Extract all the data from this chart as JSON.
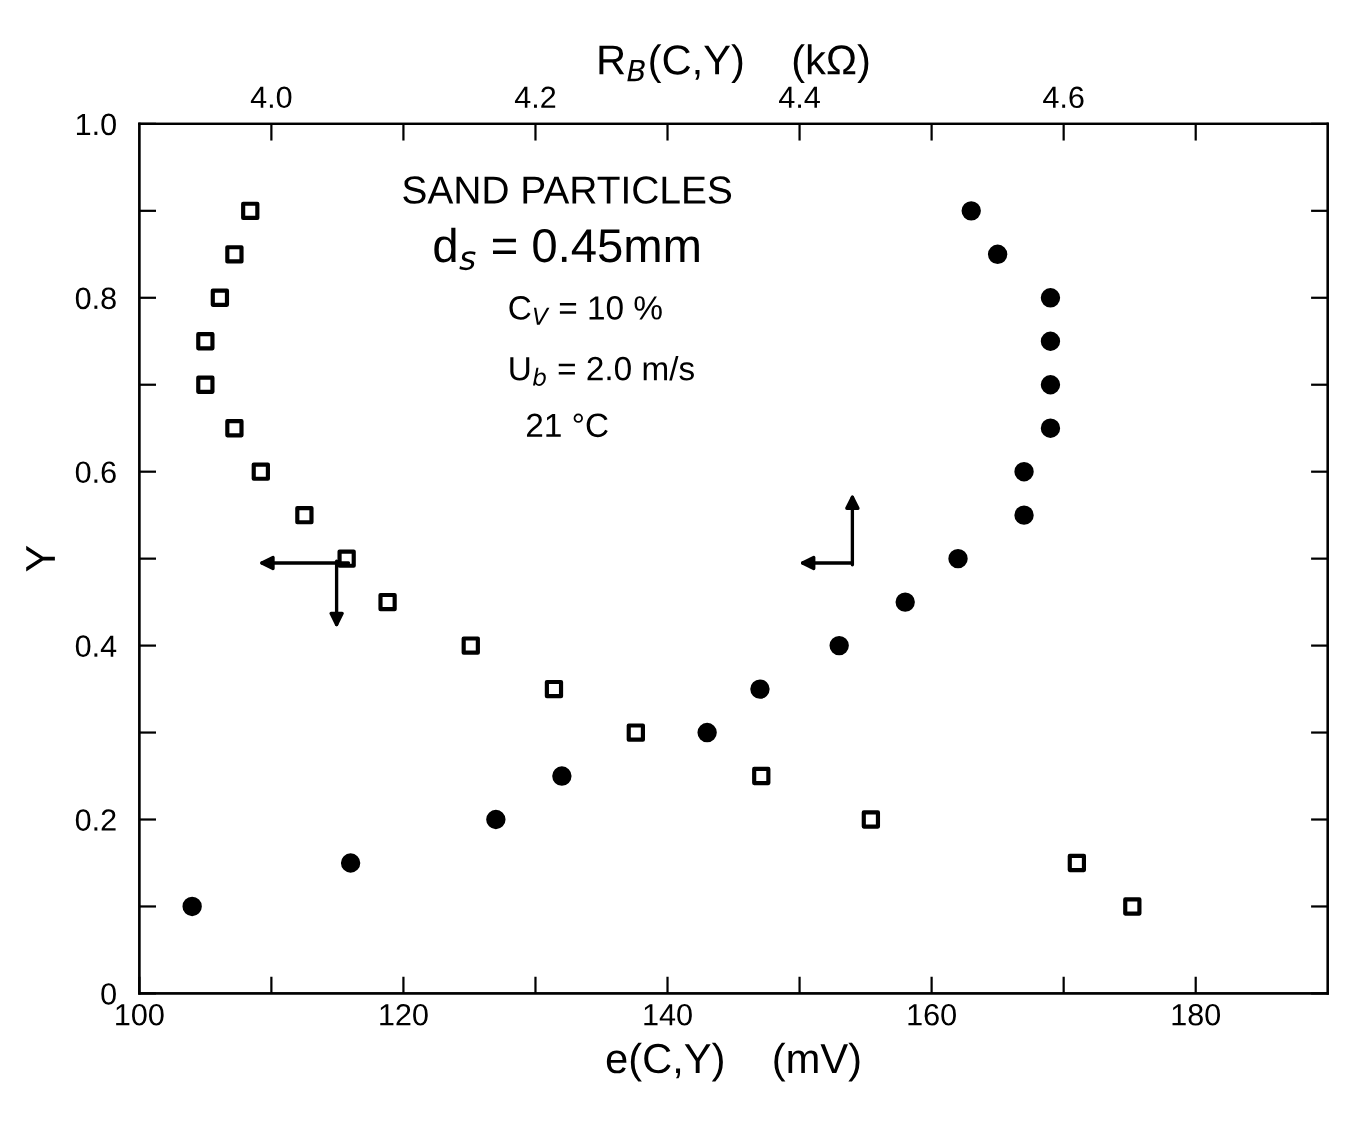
{
  "chart_data": {
    "type": "scatter",
    "xlabel": "e(C,Y)    (mV)",
    "x2label": "R$_{B}$(C,Y)    (kΩ)",
    "ylabel": "Y",
    "xlim": [
      100,
      190
    ],
    "xticks": [
      100,
      {
        "value": 110,
        "label": null
      },
      120,
      {
        "value": 130,
        "label": null
      },
      140,
      {
        "value": 150,
        "label": null
      },
      160,
      {
        "value": 170,
        "label": null
      },
      180
    ],
    "x2lim": [
      3.9,
      4.8
    ],
    "x2ticks": [
      {
        "value": 4.0,
        "label": "4.0"
      },
      {
        "value": 4.1,
        "label": null
      },
      {
        "value": 4.2,
        "label": "4.2"
      },
      {
        "value": 4.3,
        "label": null
      },
      {
        "value": 4.4,
        "label": "4.4"
      },
      {
        "value": 4.5,
        "label": null
      },
      {
        "value": 4.6,
        "label": "4.6"
      },
      {
        "value": 4.7,
        "label": null
      }
    ],
    "ylim": [
      0,
      1.0
    ],
    "yticks": [
      0,
      {
        "value": 0.1,
        "label": null
      },
      0.2,
      {
        "value": 0.3,
        "label": null
      },
      0.4,
      {
        "value": 0.5,
        "label": null
      },
      0.6,
      {
        "value": 0.7,
        "label": null
      },
      0.8,
      {
        "value": 0.9,
        "label": null
      },
      {
        "value": 1.0,
        "label": "1.0"
      }
    ],
    "grid": false,
    "series": [
      {
        "color": "#000000",
        "marker": "square",
        "x": [
          108.4,
          107.2,
          106.1,
          105.0,
          105.0,
          107.2,
          109.2,
          112.5,
          115.7,
          118.8,
          125.1,
          131.4,
          137.6,
          147.1,
          155.4,
          171.0,
          175.2
        ],
        "values": [
          0.9,
          0.85,
          0.8,
          0.75,
          0.7,
          0.65,
          0.6,
          0.55,
          0.5,
          0.45,
          0.4,
          0.35,
          0.3,
          0.25,
          0.2,
          0.15,
          0.1
        ]
      },
      {
        "color": "#000000",
        "marker": "circle",
        "axis": "x2",
        "x": [
          3.94,
          4.06,
          4.17,
          4.22,
          4.33,
          4.37,
          4.43,
          4.48,
          4.52,
          4.57,
          4.57,
          4.59,
          4.59,
          4.59,
          4.59,
          4.55,
          4.53
        ],
        "values": [
          0.1,
          0.15,
          0.2,
          0.25,
          0.3,
          0.35,
          0.4,
          0.45,
          0.5,
          0.55,
          0.6,
          0.65,
          0.7,
          0.75,
          0.8,
          0.85,
          0.9
        ]
      }
    ],
    "annotations": [
      "SAND PARTICLES",
      "d$_{s}$ = 0.45mm",
      "C$_{V}$ = 10 %",
      "U$_{b}$ = 2.0 m/s",
      "21 °C"
    ]
  }
}
